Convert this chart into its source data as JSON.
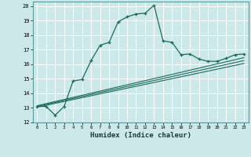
{
  "xlabel": "Humidex (Indice chaleur)",
  "bg_color": "#cce8e8",
  "grid_color": "#aacccc",
  "line_color": "#1a6b5a",
  "xlim": [
    -0.5,
    23.5
  ],
  "ylim": [
    12,
    20.3
  ],
  "xticks": [
    0,
    1,
    2,
    3,
    4,
    5,
    6,
    7,
    8,
    9,
    10,
    11,
    12,
    13,
    14,
    15,
    16,
    17,
    18,
    19,
    20,
    21,
    22,
    23
  ],
  "yticks": [
    12,
    13,
    14,
    15,
    16,
    17,
    18,
    19,
    20
  ],
  "main_x": [
    0,
    1,
    2,
    3,
    4,
    5,
    6,
    7,
    8,
    9,
    10,
    11,
    12,
    13,
    14,
    15,
    16,
    17,
    18,
    19,
    20,
    21,
    22,
    23
  ],
  "main_y": [
    13.1,
    13.1,
    12.5,
    13.1,
    14.85,
    14.95,
    16.25,
    17.3,
    17.5,
    18.9,
    19.25,
    19.45,
    19.5,
    20.05,
    17.6,
    17.5,
    16.65,
    16.7,
    16.35,
    16.2,
    16.2,
    16.4,
    16.65,
    16.7
  ],
  "ref_lines": [
    {
      "x": [
        0,
        23
      ],
      "y": [
        13.05,
        16.05
      ]
    },
    {
      "x": [
        0,
        23
      ],
      "y": [
        13.1,
        16.25
      ]
    },
    {
      "x": [
        0,
        23
      ],
      "y": [
        13.15,
        16.45
      ]
    }
  ]
}
